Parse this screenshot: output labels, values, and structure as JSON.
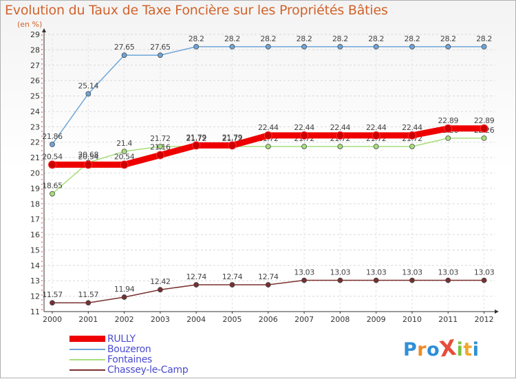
{
  "title": "Evolution du Taux de Taxe Foncière sur les Propriétés Bâties",
  "unit_label": "(en %)",
  "logo": {
    "text": "ProXiti",
    "letters": [
      "P",
      "r",
      "o",
      "X",
      "i",
      "t",
      "i"
    ],
    "colors": [
      "#2f8fd8",
      "#f08a24",
      "#2f8fd8",
      "#e74c3c",
      "#7cc242",
      "#f0a830",
      "#2f8fd8"
    ]
  },
  "chart_data": {
    "type": "line",
    "title": "Evolution du Taux de Taxe Foncière sur les Propriétés Bâties",
    "ylabel": "(en %)",
    "xlabel": "",
    "x": [
      "2000",
      "2001",
      "2002",
      "2003",
      "2004",
      "2005",
      "2006",
      "2007",
      "2008",
      "2009",
      "2010",
      "2011",
      "2012"
    ],
    "ylim": [
      11,
      29
    ],
    "yticks": [
      "11",
      "12",
      "13",
      "14",
      "15",
      "16",
      "17",
      "18",
      "19",
      "20",
      "21",
      "22",
      "23",
      "24",
      "25",
      "26",
      "27",
      "28",
      "29"
    ],
    "grid": true,
    "legend_position": "bottom-left",
    "series": [
      {
        "name": "Chassey-le-Camp",
        "color": "#7a2f2f",
        "values": [
          11.57,
          11.57,
          11.94,
          12.42,
          12.74,
          12.74,
          12.74,
          13.03,
          13.03,
          13.03,
          13.03,
          13.03,
          13.03
        ],
        "labels": [
          "11.57",
          "11.57",
          "11.94",
          "12.42",
          "12.74",
          "12.74",
          "12.74",
          "13.03",
          "13.03",
          "13.03",
          "13.03",
          "13.03",
          "13.03"
        ]
      },
      {
        "name": "Fontaines",
        "color": "#a6de7b",
        "values": [
          18.65,
          20.68,
          21.4,
          21.72,
          21.72,
          21.72,
          21.72,
          21.72,
          21.72,
          21.72,
          21.72,
          22.26,
          22.26
        ],
        "labels": [
          "18.65",
          "20.68",
          "21.4",
          "21.72",
          "21.72",
          "21.72",
          "21.72",
          "21.72",
          "21.72",
          "21.72",
          "21.72",
          "22.26",
          "22.26"
        ]
      },
      {
        "name": "Bouzeron",
        "color": "#6ea5d8",
        "values": [
          21.86,
          25.14,
          27.65,
          27.65,
          28.2,
          28.2,
          28.2,
          28.2,
          28.2,
          28.2,
          28.2,
          28.2,
          28.2
        ],
        "labels": [
          "21.86",
          "25.14",
          "27.65",
          "27.65",
          "28.2",
          "28.2",
          "28.2",
          "28.2",
          "28.2",
          "28.2",
          "28.2",
          "28.2",
          "28.2"
        ]
      },
      {
        "name": "RULLY",
        "color": "#ee0000",
        "values": [
          20.54,
          20.54,
          20.54,
          21.16,
          21.79,
          21.79,
          22.44,
          22.44,
          22.44,
          22.44,
          22.44,
          22.89,
          22.89
        ],
        "labels": [
          "20.54",
          "20.54",
          "20.54",
          "21.16",
          "21.79",
          "21.79",
          "22.44",
          "22.44",
          "22.44",
          "22.44",
          "22.44",
          "22.89",
          "22.89"
        ]
      }
    ]
  },
  "legend": [
    {
      "label": "RULLY",
      "color": "#ee0000",
      "thick": true
    },
    {
      "label": "Bouzeron",
      "color": "#6ea5d8",
      "thick": false
    },
    {
      "label": "Fontaines",
      "color": "#a6de7b",
      "thick": false
    },
    {
      "label": "Chassey-le-Camp",
      "color": "#7a2f2f",
      "thick": false
    }
  ]
}
